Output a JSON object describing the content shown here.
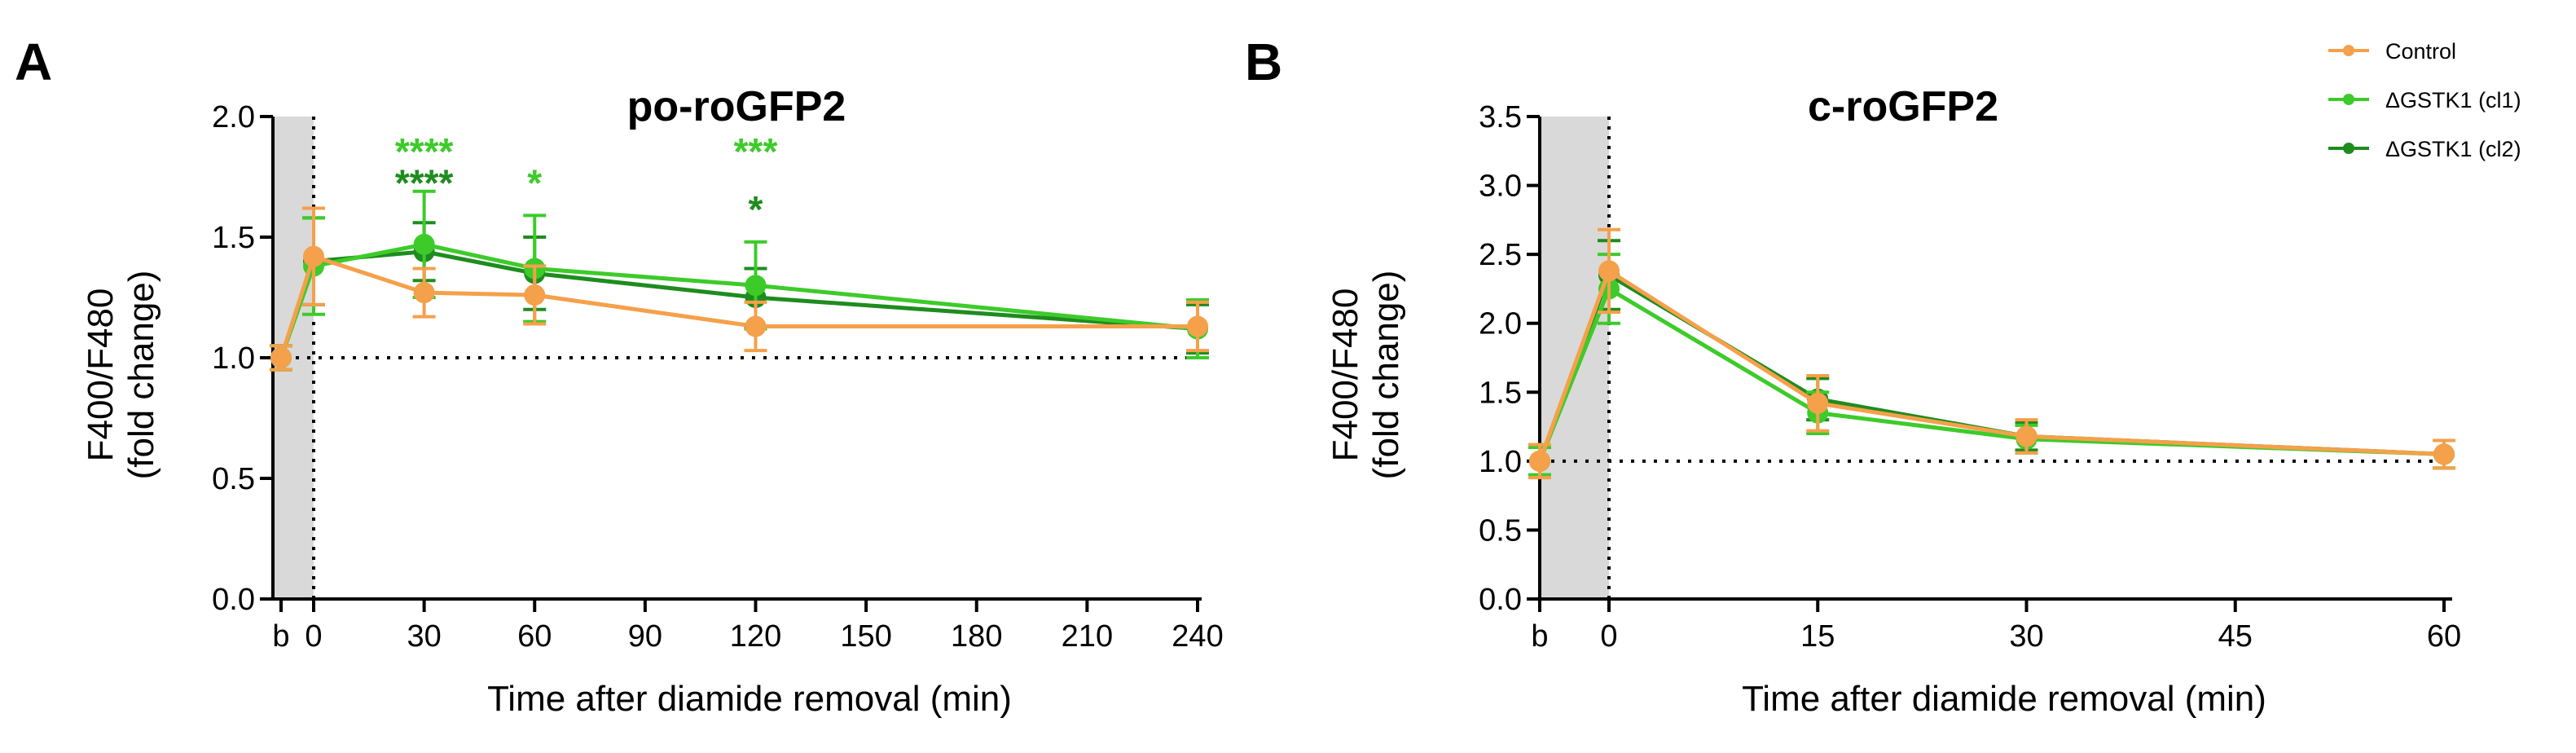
{
  "legend": {
    "position": "top-right",
    "entries": [
      {
        "name": "Control",
        "color": "#F5A04A"
      },
      {
        "name": "ΔGSTK1 (cl1)",
        "color": "#3DCB2A"
      },
      {
        "name": "ΔGSTK1 (cl2)",
        "color": "#1E8C1E"
      }
    ]
  },
  "chart_data": [
    {
      "type": "line",
      "panel": "A",
      "title": "po-roGFP2",
      "xlabel": "Time after diamide removal (min)",
      "ylabel_line1": "F400/F480",
      "ylabel_line2": "(fold change)",
      "ylim": [
        0,
        2.0
      ],
      "yticks": [
        "0.0",
        "0.5",
        "1.0",
        "1.5",
        "2.0"
      ],
      "xticks": [
        "b",
        "0",
        "30",
        "60",
        "90",
        "120",
        "150",
        "180",
        "210",
        "240"
      ],
      "x": [
        -18,
        0,
        30,
        60,
        120,
        240
      ],
      "shaded_region": [
        -18,
        0
      ],
      "baseline": 1.0,
      "series": [
        {
          "name": "Control",
          "color": "#F5A04A",
          "values": [
            1.0,
            1.42,
            1.27,
            1.26,
            1.13,
            1.13
          ],
          "errors": [
            0.05,
            0.2,
            0.1,
            0.12,
            0.1,
            0.1
          ]
        },
        {
          "name": "ΔGSTK1 (cl1)",
          "color": "#3DCB2A",
          "values": [
            1.0,
            1.38,
            1.47,
            1.37,
            1.3,
            1.12
          ],
          "errors": [
            0.05,
            0.2,
            0.22,
            0.22,
            0.18,
            0.12
          ]
        },
        {
          "name": "ΔGSTK1 (cl2)",
          "color": "#1E8C1E",
          "values": [
            1.0,
            1.4,
            1.44,
            1.35,
            1.25,
            1.12
          ],
          "errors": [
            0.05,
            0.18,
            0.12,
            0.15,
            0.12,
            0.1
          ]
        }
      ],
      "annotations": [
        {
          "x": 30,
          "y": 1.8,
          "text": "****",
          "color": "#3DCB2A"
        },
        {
          "x": 30,
          "y": 1.67,
          "text": "****",
          "color": "#1E8C1E"
        },
        {
          "x": 60,
          "y": 1.67,
          "text": "*",
          "color": "#3DCB2A"
        },
        {
          "x": 120,
          "y": 1.8,
          "text": "***",
          "color": "#3DCB2A"
        },
        {
          "x": 120,
          "y": 1.56,
          "text": "*",
          "color": "#1E8C1E"
        }
      ]
    },
    {
      "type": "line",
      "panel": "B",
      "title": "c-roGFP2",
      "xlabel": "Time after diamide removal (min)",
      "ylabel_line1": "F400/F480",
      "ylabel_line2": "(fold change)",
      "ylim": [
        0,
        3.5
      ],
      "yticks": [
        "0.0",
        "0.5",
        "1.0",
        "1.5",
        "2.0",
        "2.5",
        "3.0",
        "3.5"
      ],
      "xticks": [
        "b",
        "0",
        "15",
        "30",
        "45",
        "60"
      ],
      "x": [
        -5,
        0,
        15,
        30,
        60
      ],
      "shaded_region": [
        -5,
        0
      ],
      "baseline": 1.0,
      "series": [
        {
          "name": "Control",
          "color": "#F5A04A",
          "values": [
            1.0,
            2.38,
            1.42,
            1.18,
            1.05
          ],
          "errors": [
            0.12,
            0.3,
            0.2,
            0.12,
            0.1
          ]
        },
        {
          "name": "ΔGSTK1 (cl1)",
          "color": "#3DCB2A",
          "values": [
            1.0,
            2.25,
            1.35,
            1.16,
            1.05
          ],
          "errors": [
            0.1,
            0.25,
            0.15,
            0.1,
            0.1
          ]
        },
        {
          "name": "ΔGSTK1 (cl2)",
          "color": "#1E8C1E",
          "values": [
            1.0,
            2.35,
            1.45,
            1.18,
            1.05
          ],
          "errors": [
            0.1,
            0.25,
            0.15,
            0.1,
            0.1
          ]
        }
      ],
      "annotations": []
    }
  ]
}
